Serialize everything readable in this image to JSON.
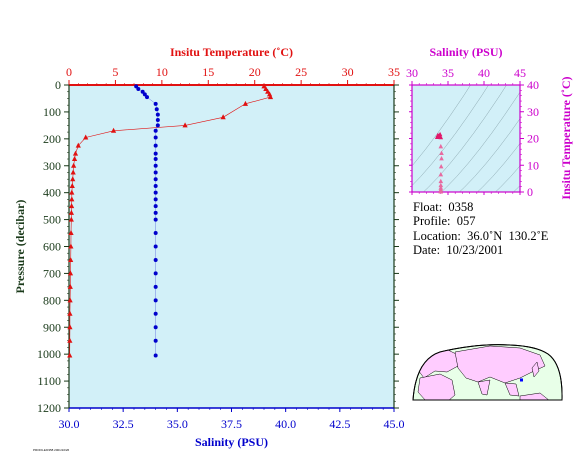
{
  "chart_data": [
    {
      "type": "profile",
      "name": "main",
      "top_axis_label": "Insitu Temperature (˚C)",
      "bottom_axis_label": "Salinity (PSU)",
      "left_axis_label": "Pressure (decibar)",
      "temperature_ticks": [
        "0",
        "5",
        "10",
        "15",
        "20",
        "25",
        "30",
        "35"
      ],
      "salinity_ticks": [
        "30.0",
        "32.5",
        "35.0",
        "37.5",
        "40.0",
        "42.5",
        "45.0"
      ],
      "pressure_ticks": [
        "0",
        "100",
        "200",
        "300",
        "400",
        "500",
        "600",
        "700",
        "800",
        "900",
        "1000",
        "1100",
        "1200"
      ],
      "temperature_range": [
        0,
        35
      ],
      "salinity_range": [
        30,
        45
      ],
      "pressure_range": [
        0,
        1200
      ],
      "temperature_color": "#e11111",
      "salinity_color": "#0000cc",
      "background_color": "#d2f0f8",
      "temperature_series": [
        {
          "p": 5,
          "t": 21.0
        },
        {
          "p": 15,
          "t": 21.2
        },
        {
          "p": 25,
          "t": 21.4
        },
        {
          "p": 35,
          "t": 21.6
        },
        {
          "p": 45,
          "t": 21.7
        },
        {
          "p": 70,
          "t": 19.0
        },
        {
          "p": 120,
          "t": 16.6
        },
        {
          "p": 150,
          "t": 12.5
        },
        {
          "p": 170,
          "t": 4.8
        },
        {
          "p": 195,
          "t": 1.8
        },
        {
          "p": 225,
          "t": 1.0
        },
        {
          "p": 255,
          "t": 0.7
        },
        {
          "p": 275,
          "t": 0.6
        },
        {
          "p": 300,
          "t": 0.5
        },
        {
          "p": 325,
          "t": 0.45
        },
        {
          "p": 350,
          "t": 0.4
        },
        {
          "p": 375,
          "t": 0.35
        },
        {
          "p": 400,
          "t": 0.3
        },
        {
          "p": 425,
          "t": 0.3
        },
        {
          "p": 450,
          "t": 0.28
        },
        {
          "p": 475,
          "t": 0.26
        },
        {
          "p": 500,
          "t": 0.25
        },
        {
          "p": 550,
          "t": 0.22
        },
        {
          "p": 600,
          "t": 0.2
        },
        {
          "p": 650,
          "t": 0.18
        },
        {
          "p": 700,
          "t": 0.16
        },
        {
          "p": 750,
          "t": 0.14
        },
        {
          "p": 800,
          "t": 0.12
        },
        {
          "p": 850,
          "t": 0.1
        },
        {
          "p": 900,
          "t": 0.1
        },
        {
          "p": 950,
          "t": 0.09
        },
        {
          "p": 1005,
          "t": 0.08
        }
      ],
      "salinity_series": [
        {
          "p": 5,
          "s": 33.1
        },
        {
          "p": 15,
          "s": 33.2
        },
        {
          "p": 25,
          "s": 33.4
        },
        {
          "p": 35,
          "s": 33.5
        },
        {
          "p": 45,
          "s": 33.6
        },
        {
          "p": 70,
          "s": 34.0
        },
        {
          "p": 90,
          "s": 34.05
        },
        {
          "p": 110,
          "s": 34.1
        },
        {
          "p": 130,
          "s": 34.1
        },
        {
          "p": 150,
          "s": 34.1
        },
        {
          "p": 170,
          "s": 34.0
        },
        {
          "p": 195,
          "s": 34.0
        },
        {
          "p": 225,
          "s": 34.0
        },
        {
          "p": 255,
          "s": 34.0
        },
        {
          "p": 275,
          "s": 34.0
        },
        {
          "p": 300,
          "s": 34.0
        },
        {
          "p": 325,
          "s": 34.0
        },
        {
          "p": 350,
          "s": 34.0
        },
        {
          "p": 375,
          "s": 34.0
        },
        {
          "p": 400,
          "s": 34.0
        },
        {
          "p": 425,
          "s": 34.0
        },
        {
          "p": 450,
          "s": 34.0
        },
        {
          "p": 475,
          "s": 34.0
        },
        {
          "p": 500,
          "s": 34.0
        },
        {
          "p": 550,
          "s": 34.0
        },
        {
          "p": 600,
          "s": 34.0
        },
        {
          "p": 650,
          "s": 34.0
        },
        {
          "p": 700,
          "s": 34.0
        },
        {
          "p": 750,
          "s": 34.0
        },
        {
          "p": 800,
          "s": 34.0
        },
        {
          "p": 850,
          "s": 34.0
        },
        {
          "p": 900,
          "s": 34.0
        },
        {
          "p": 950,
          "s": 34.0
        },
        {
          "p": 1005,
          "s": 34.0
        }
      ]
    },
    {
      "type": "scatter",
      "name": "ts-diagram",
      "xlabel": "Salinity (PSU)",
      "ylabel": "Insitu Temperature (˚C)",
      "x_ticks": [
        "30",
        "35",
        "40",
        "45"
      ],
      "y_ticks": [
        "0",
        "10",
        "20",
        "30",
        "40"
      ],
      "xlim": [
        30,
        45
      ],
      "ylim": [
        0,
        40
      ],
      "color": "#cc00cc",
      "points": [
        {
          "s": 33.5,
          "t": 20.5
        },
        {
          "s": 33.6,
          "t": 21.2
        },
        {
          "s": 33.8,
          "t": 21.0
        },
        {
          "s": 33.7,
          "t": 20.8
        },
        {
          "s": 33.9,
          "t": 21.5
        },
        {
          "s": 34.0,
          "t": 20.4
        },
        {
          "s": 34.0,
          "t": 17.0
        },
        {
          "s": 34.1,
          "t": 14.5
        },
        {
          "s": 34.1,
          "t": 12.5
        },
        {
          "s": 34.05,
          "t": 9.5
        },
        {
          "s": 34.0,
          "t": 6.5
        },
        {
          "s": 34.0,
          "t": 4.0
        },
        {
          "s": 34.0,
          "t": 2.5
        },
        {
          "s": 34.0,
          "t": 1.5
        },
        {
          "s": 34.0,
          "t": 0.8
        },
        {
          "s": 34.0,
          "t": 0.4
        },
        {
          "s": 34.0,
          "t": 0.2
        },
        {
          "s": 34.0,
          "t": 0.1
        }
      ]
    }
  ],
  "info": {
    "float": "Float:  0358",
    "profile": "Profile:  057",
    "location": "Location:  36.0˚N  130.2˚E",
    "date": "Date:  10/23/2001"
  },
  "map": {
    "land_color": "#ffccff",
    "ocean_color": "#e8ffe8",
    "marker_color": "#0000ff",
    "float_lat": 36.0,
    "float_lon": 130.2
  },
  "stamp": "PROFILE/0358 2001/10/26"
}
